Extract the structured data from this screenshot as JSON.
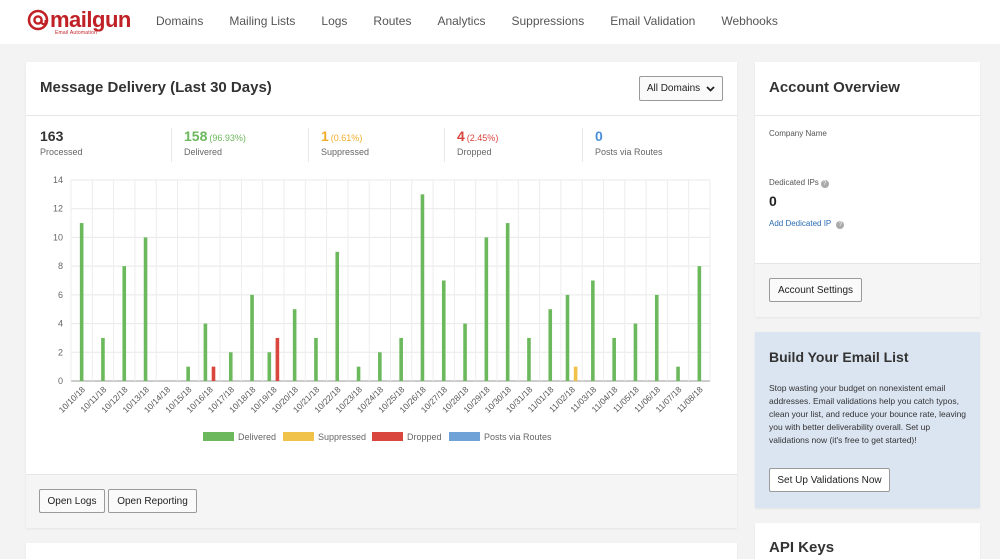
{
  "brand": {
    "name": "mailgun",
    "tagline": "Email Automation",
    "color": "#c02126"
  },
  "nav": {
    "items": [
      {
        "label": "Domains"
      },
      {
        "label": "Mailing Lists"
      },
      {
        "label": "Logs"
      },
      {
        "label": "Routes"
      },
      {
        "label": "Analytics"
      },
      {
        "label": "Suppressions"
      },
      {
        "label": "Email Validation"
      },
      {
        "label": "Webhooks"
      }
    ]
  },
  "delivery": {
    "title": "Message Delivery (Last 30 Days)",
    "domain_select": "All Domains",
    "stats": [
      {
        "value": "163",
        "pct": "",
        "label": "Processed",
        "color": "#333333"
      },
      {
        "value": "158",
        "pct": "(96.93%)",
        "label": "Delivered",
        "color": "#6cb85c"
      },
      {
        "value": "1",
        "pct": "(0.61%)",
        "label": "Suppressed",
        "color": "#f0ad2c"
      },
      {
        "value": "4",
        "pct": "(2.45%)",
        "label": "Dropped",
        "color": "#d9463d"
      },
      {
        "value": "0",
        "pct": "",
        "label": "Posts via Routes",
        "color": "#4a90d9"
      }
    ],
    "open_logs": "Open Logs",
    "open_reporting": "Open Reporting"
  },
  "chart_data": {
    "type": "bar",
    "categories": [
      "10/10/18",
      "10/11/18",
      "10/12/18",
      "10/13/18",
      "10/14/18",
      "10/15/18",
      "10/16/18",
      "10/17/18",
      "10/18/18",
      "10/19/18",
      "10/20/18",
      "10/21/18",
      "10/22/18",
      "10/23/18",
      "10/24/18",
      "10/25/18",
      "10/26/18",
      "10/27/18",
      "10/28/18",
      "10/29/18",
      "10/30/18",
      "10/31/18",
      "11/01/18",
      "11/02/18",
      "11/03/18",
      "11/04/18",
      "11/05/18",
      "11/06/18",
      "11/07/18",
      "11/08/18"
    ],
    "series": [
      {
        "name": "Delivered",
        "color": "#6cb85c",
        "values": [
          11,
          3,
          8,
          10,
          0,
          1,
          4,
          2,
          6,
          2,
          5,
          3,
          9,
          1,
          2,
          3,
          13,
          7,
          4,
          10,
          11,
          3,
          5,
          6,
          7,
          3,
          4,
          6,
          1,
          8
        ]
      },
      {
        "name": "Suppressed",
        "color": "#f0c24a",
        "values": [
          0,
          0,
          0,
          0,
          0,
          0,
          0,
          0,
          0,
          0,
          0,
          0,
          0,
          0,
          0,
          0,
          0,
          0,
          0,
          0,
          0,
          0,
          0,
          1,
          0,
          0,
          0,
          0,
          0,
          0
        ]
      },
      {
        "name": "Dropped",
        "color": "#d9463d",
        "values": [
          0,
          0,
          0,
          0,
          0,
          0,
          1,
          0,
          0,
          3,
          0,
          0,
          0,
          0,
          0,
          0,
          0,
          0,
          0,
          0,
          0,
          0,
          0,
          0,
          0,
          0,
          0,
          0,
          0,
          0
        ]
      },
      {
        "name": "Posts via Routes",
        "color": "#6fa3d8",
        "values": [
          0,
          0,
          0,
          0,
          0,
          0,
          0,
          0,
          0,
          0,
          0,
          0,
          0,
          0,
          0,
          0,
          0,
          0,
          0,
          0,
          0,
          0,
          0,
          0,
          0,
          0,
          0,
          0,
          0,
          0
        ]
      }
    ],
    "ylim": [
      0,
      14
    ],
    "yticks": [
      0,
      2,
      4,
      6,
      8,
      10,
      12,
      14
    ],
    "grid": true,
    "legend": "bottom-center"
  },
  "overview": {
    "title": "Account Overview",
    "company_label": "Company Name",
    "dedicated_label": "Dedicated IPs",
    "dedicated_value": "0",
    "add_ip": "Add Dedicated IP",
    "settings_button": "Account Settings"
  },
  "buildlist": {
    "title": "Build Your Email List",
    "text": "Stop wasting your budget on nonexistent email addresses. Email validations help you catch typos, clean your list, and reduce your bounce rate, leaving you with better deliverability overall. Set up validations now (it's free to get started)!",
    "button": "Set Up Validations Now"
  },
  "apikeys": {
    "title": "API Keys"
  }
}
